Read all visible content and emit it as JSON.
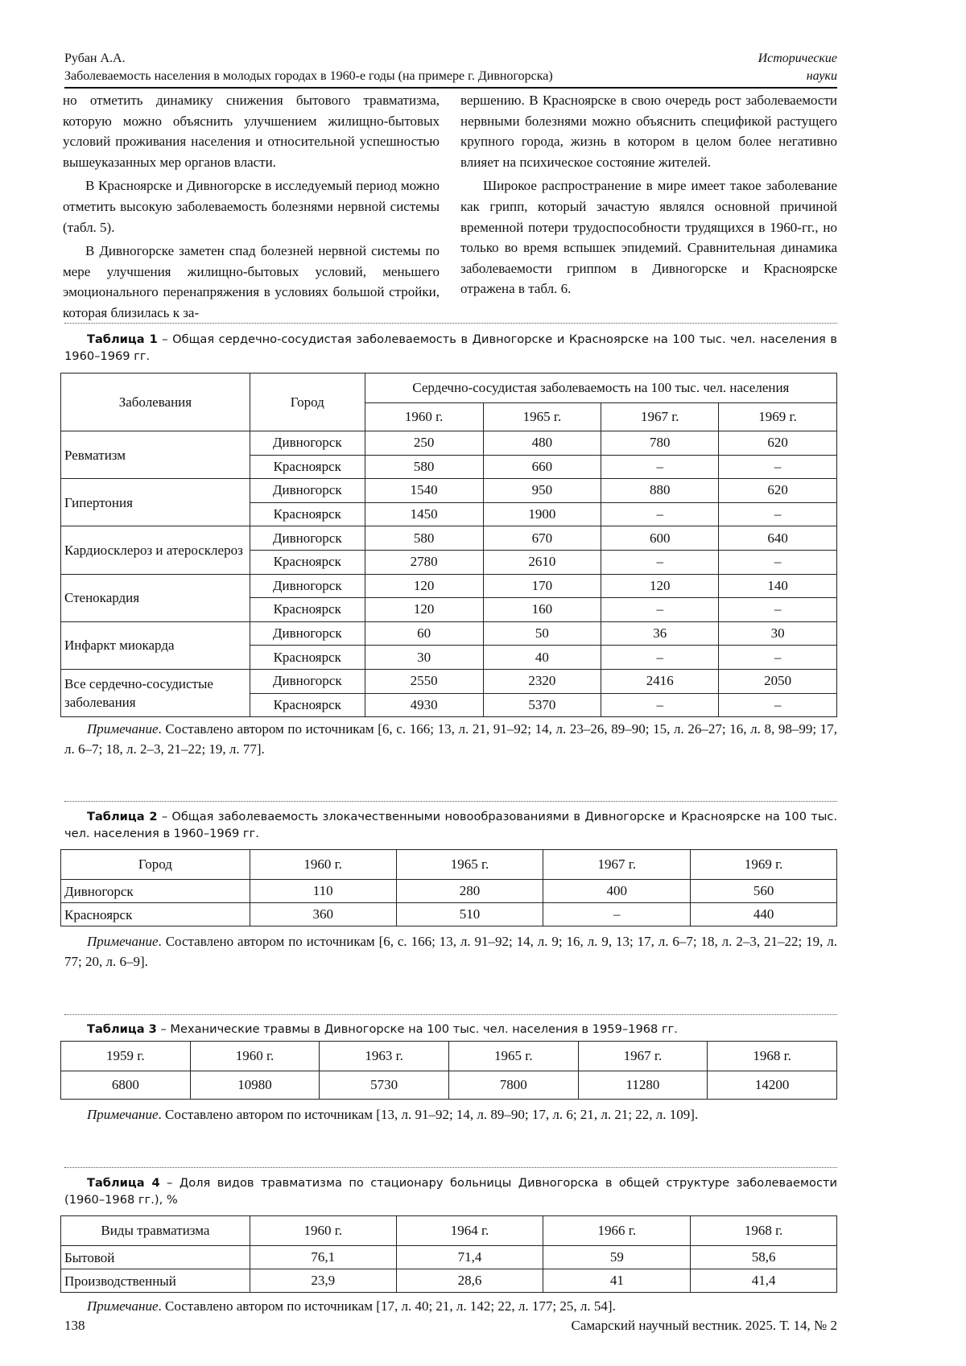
{
  "header": {
    "author": "Рубан А.А.",
    "title": "Заболеваемость населения в молодых городах в 1960-е годы (на примере г. Дивногорска)",
    "section_line1": "Исторические",
    "section_line2": "науки"
  },
  "body": {
    "left": [
      "но отметить динамику снижения бытового травматизма, которую можно объяснить улучшением жилищно-бытовых условий проживания населения и относительной успешностью вышеуказанных мер органов власти.",
      "В Красноярске и Дивногорске в исследуемый период можно отметить высокую заболеваемость болезнями нервной системы (табл. 5).",
      "В Дивногорске заметен спад болезней нервной системы по мере улучшения жилищно-бытовых условий, меньшего эмоционального перенапряжения в условиях большой стройки, которая близилась к за-"
    ],
    "right": [
      "вершению. В Красноярске в свою очередь рост заболеваемости нервными болезнями можно объяснить спецификой растущего крупного города, жизнь в котором в целом более негативно влияет на психическое состояние жителей.",
      "Широкое распространение в мире имеет такое заболевание как грипп, который зачастую являлся основной причиной временной потери трудоспособности трудящихся в 1960-гг., но только во время вспышек эпидемий. Сравнительная динамика заболеваемости гриппом в Дивногорске и Красноярске отражена в табл. 6."
    ]
  },
  "table1": {
    "label": "Таблица 1",
    "caption": " – Общая сердечно-сосудистая заболеваемость в Дивногорске и Красноярске на 100 тыс. чел. населения в 1960–1969 гг.",
    "col_disease": "Заболевания",
    "col_city": "Город",
    "group_header": "Сердечно-сосудистая заболеваемость на 100 тыс. чел. населения",
    "years": [
      "1960 г.",
      "1965 г.",
      "1967 г.",
      "1969 г."
    ],
    "groups": [
      {
        "disease": "Ревматизм",
        "rows": [
          [
            "Дивногорск",
            "250",
            "480",
            "780",
            "620"
          ],
          [
            "Красноярск",
            "580",
            "660",
            "–",
            "–"
          ]
        ]
      },
      {
        "disease": "Гипертония",
        "rows": [
          [
            "Дивногорск",
            "1540",
            "950",
            "880",
            "620"
          ],
          [
            "Красноярск",
            "1450",
            "1900",
            "–",
            "–"
          ]
        ]
      },
      {
        "disease": "Кардиосклероз и атеросклероз",
        "rows": [
          [
            "Дивногорск",
            "580",
            "670",
            "600",
            "640"
          ],
          [
            "Красноярск",
            "2780",
            "2610",
            "–",
            "–"
          ]
        ]
      },
      {
        "disease": "Стенокардия",
        "rows": [
          [
            "Дивногорск",
            "120",
            "170",
            "120",
            "140"
          ],
          [
            "Красноярск",
            "120",
            "160",
            "–",
            "–"
          ]
        ]
      },
      {
        "disease": "Инфаркт миокарда",
        "rows": [
          [
            "Дивногорск",
            "60",
            "50",
            "36",
            "30"
          ],
          [
            "Красноярск",
            "30",
            "40",
            "–",
            "–"
          ]
        ]
      },
      {
        "disease": "Все сердечно-сосудистые заболевания",
        "rows": [
          [
            "Дивногорск",
            "2550",
            "2320",
            "2416",
            "2050"
          ],
          [
            "Красноярск",
            "4930",
            "5370",
            "–",
            "–"
          ]
        ]
      }
    ],
    "note_label": "Примечание",
    "note": ". Составлено автором по источникам [6, с. 166; 13, л. 21, 91–92; 14, л. 23–26, 89–90; 15, л. 26–27; 16, л. 8, 98–99; 17, л. 6–7; 18, л. 2–3, 21–22; 19, л. 77]."
  },
  "table2": {
    "label": "Таблица 2",
    "caption": " – Общая заболеваемость злокачественными новообразованиями в Дивногорске и Красноярске на 100 тыс. чел. населения в 1960–1969 гг.",
    "header": [
      "Город",
      "1960 г.",
      "1965 г.",
      "1967 г.",
      "1969 г."
    ],
    "rows": [
      [
        "Дивногорск",
        "110",
        "280",
        "400",
        "560"
      ],
      [
        "Красноярск",
        "360",
        "510",
        "–",
        "440"
      ]
    ],
    "note_label": "Примечание",
    "note": ". Составлено автором по источникам [6, с. 166; 13, л. 91–92; 14, л. 9; 16, л. 9, 13; 17, л. 6–7; 18, л. 2–3, 21–22; 19, л. 77; 20, л. 6–9]."
  },
  "table3": {
    "label": "Таблица 3",
    "caption": " – Механические травмы в Дивногорске на 100 тыс. чел. населения в 1959–1968 гг.",
    "header": [
      "1959 г.",
      "1960 г.",
      "1963 г.",
      "1965 г.",
      "1967 г.",
      "1968 г."
    ],
    "rows": [
      [
        "6800",
        "10980",
        "5730",
        "7800",
        "11280",
        "14200"
      ]
    ],
    "note_label": "Примечание",
    "note": ". Составлено автором по источникам [13, л. 91–92; 14, л. 89–90; 17, л. 6; 21, л. 21; 22, л. 109]."
  },
  "table4": {
    "label": "Таблица 4",
    "caption": " – Доля видов травматизма по стационару больницы Дивногорска в общей структуре заболеваемости (1960–1968 гг.), %",
    "header": [
      "Виды травматизма",
      "1960 г.",
      "1964 г.",
      "1966 г.",
      "1968 г."
    ],
    "rows": [
      [
        "Бытовой",
        "76,1",
        "71,4",
        "59",
        "58,6"
      ],
      [
        "Производственный",
        "23,9",
        "28,6",
        "41",
        "41,4"
      ]
    ],
    "note_label": "Примечание",
    "note": ". Составлено автором по источникам [17, л. 40; 21, л. 142; 22, л. 177; 25, л. 54]."
  },
  "footer": {
    "page": "138",
    "journal": "Самарский научный вестник. 2025. Т. 14, № 2"
  }
}
